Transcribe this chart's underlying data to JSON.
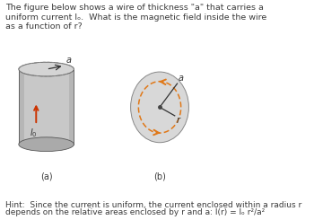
{
  "title_line1": "The figure below shows a wire of thickness \"a\" that carries a",
  "title_line2": "uniform current Iₒ.  What is the magnetic field inside the wire",
  "title_line3": "as a function of r?",
  "hint_line1": "Hint:  Since the current is uniform, the current enclosed within a radius r",
  "hint_line2": "depends on the relative areas enclosed by r and a: I(r) = Iₒ r²/a²",
  "label_a": "(a)",
  "label_b": "(b)",
  "bg_color": "#ffffff",
  "cylinder_body_color": "#c8c8c8",
  "cylinder_top_color": "#d4d4d4",
  "cylinder_shadow_color": "#aaaaaa",
  "circle_bg_color": "#d8d8d8",
  "dashed_color": "#888888",
  "arrow_color": "#cc3300",
  "orange_color": "#e07818",
  "text_color": "#3a3a3a",
  "font_size_main": 6.8,
  "font_size_label": 7.0,
  "font_size_hint": 6.5
}
